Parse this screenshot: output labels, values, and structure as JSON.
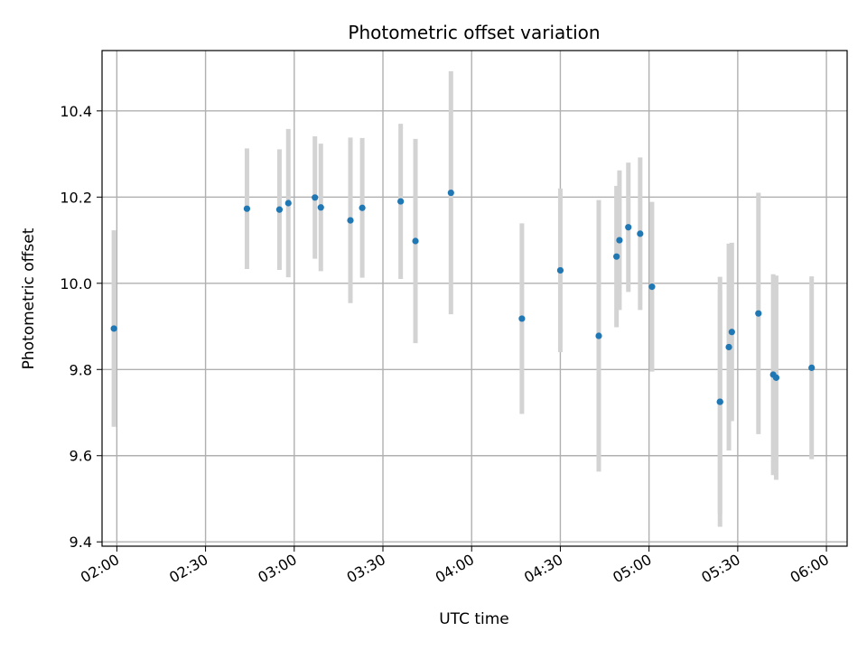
{
  "chart_data": {
    "type": "scatter",
    "title": "Photometric offset variation",
    "xlabel": "UTC time",
    "ylabel": "Photometric offset",
    "x_unit": "UTC time (HH:MM)",
    "xlim": [
      "01:55",
      "06:07"
    ],
    "ylim": [
      9.39,
      10.54
    ],
    "x_ticks": [
      "02:00",
      "02:30",
      "03:00",
      "03:30",
      "04:00",
      "04:30",
      "05:00",
      "05:30",
      "06:00"
    ],
    "y_ticks": [
      "9.4",
      "9.6",
      "9.8",
      "10.0",
      "10.2",
      "10.4"
    ],
    "grid": true,
    "colors": {
      "points": "#1f77b4",
      "errorbars": "#d3d3d3",
      "grid": "#b0b0b0"
    },
    "series": [
      {
        "points": [
          {
            "x": "01:59",
            "y": 9.895,
            "err": 0.228
          },
          {
            "x": "02:44",
            "y": 10.173,
            "err": 0.14
          },
          {
            "x": "02:55",
            "y": 10.171,
            "err": 0.14
          },
          {
            "x": "02:58",
            "y": 10.186,
            "err": 0.172
          },
          {
            "x": "03:07",
            "y": 10.199,
            "err": 0.142
          },
          {
            "x": "03:09",
            "y": 10.176,
            "err": 0.148
          },
          {
            "x": "03:19",
            "y": 10.146,
            "err": 0.192
          },
          {
            "x": "03:23",
            "y": 10.175,
            "err": 0.162
          },
          {
            "x": "03:36",
            "y": 10.19,
            "err": 0.18
          },
          {
            "x": "03:41",
            "y": 10.098,
            "err": 0.237
          },
          {
            "x": "03:53",
            "y": 10.21,
            "err": 0.282
          },
          {
            "x": "04:17",
            "y": 9.918,
            "err": 0.221
          },
          {
            "x": "04:30",
            "y": 10.03,
            "err": 0.19
          },
          {
            "x": "04:43",
            "y": 9.878,
            "err": 0.315
          },
          {
            "x": "04:49",
            "y": 10.062,
            "err": 0.164
          },
          {
            "x": "04:50",
            "y": 10.1,
            "err": 0.162
          },
          {
            "x": "04:53",
            "y": 10.13,
            "err": 0.15
          },
          {
            "x": "04:57",
            "y": 10.115,
            "err": 0.177
          },
          {
            "x": "05:01",
            "y": 9.992,
            "err": 0.197
          },
          {
            "x": "05:24",
            "y": 9.725,
            "err": 0.29
          },
          {
            "x": "05:24",
            "y": 9.725,
            "err": 0.26
          },
          {
            "x": "05:27",
            "y": 9.852,
            "err": 0.24
          },
          {
            "x": "05:28",
            "y": 9.887,
            "err": 0.207
          },
          {
            "x": "05:37",
            "y": 9.93,
            "err": 0.28
          },
          {
            "x": "05:42",
            "y": 9.788,
            "err": 0.233
          },
          {
            "x": "05:43",
            "y": 9.781,
            "err": 0.237
          },
          {
            "x": "05:55",
            "y": 9.804,
            "err": 0.212
          }
        ]
      }
    ]
  }
}
